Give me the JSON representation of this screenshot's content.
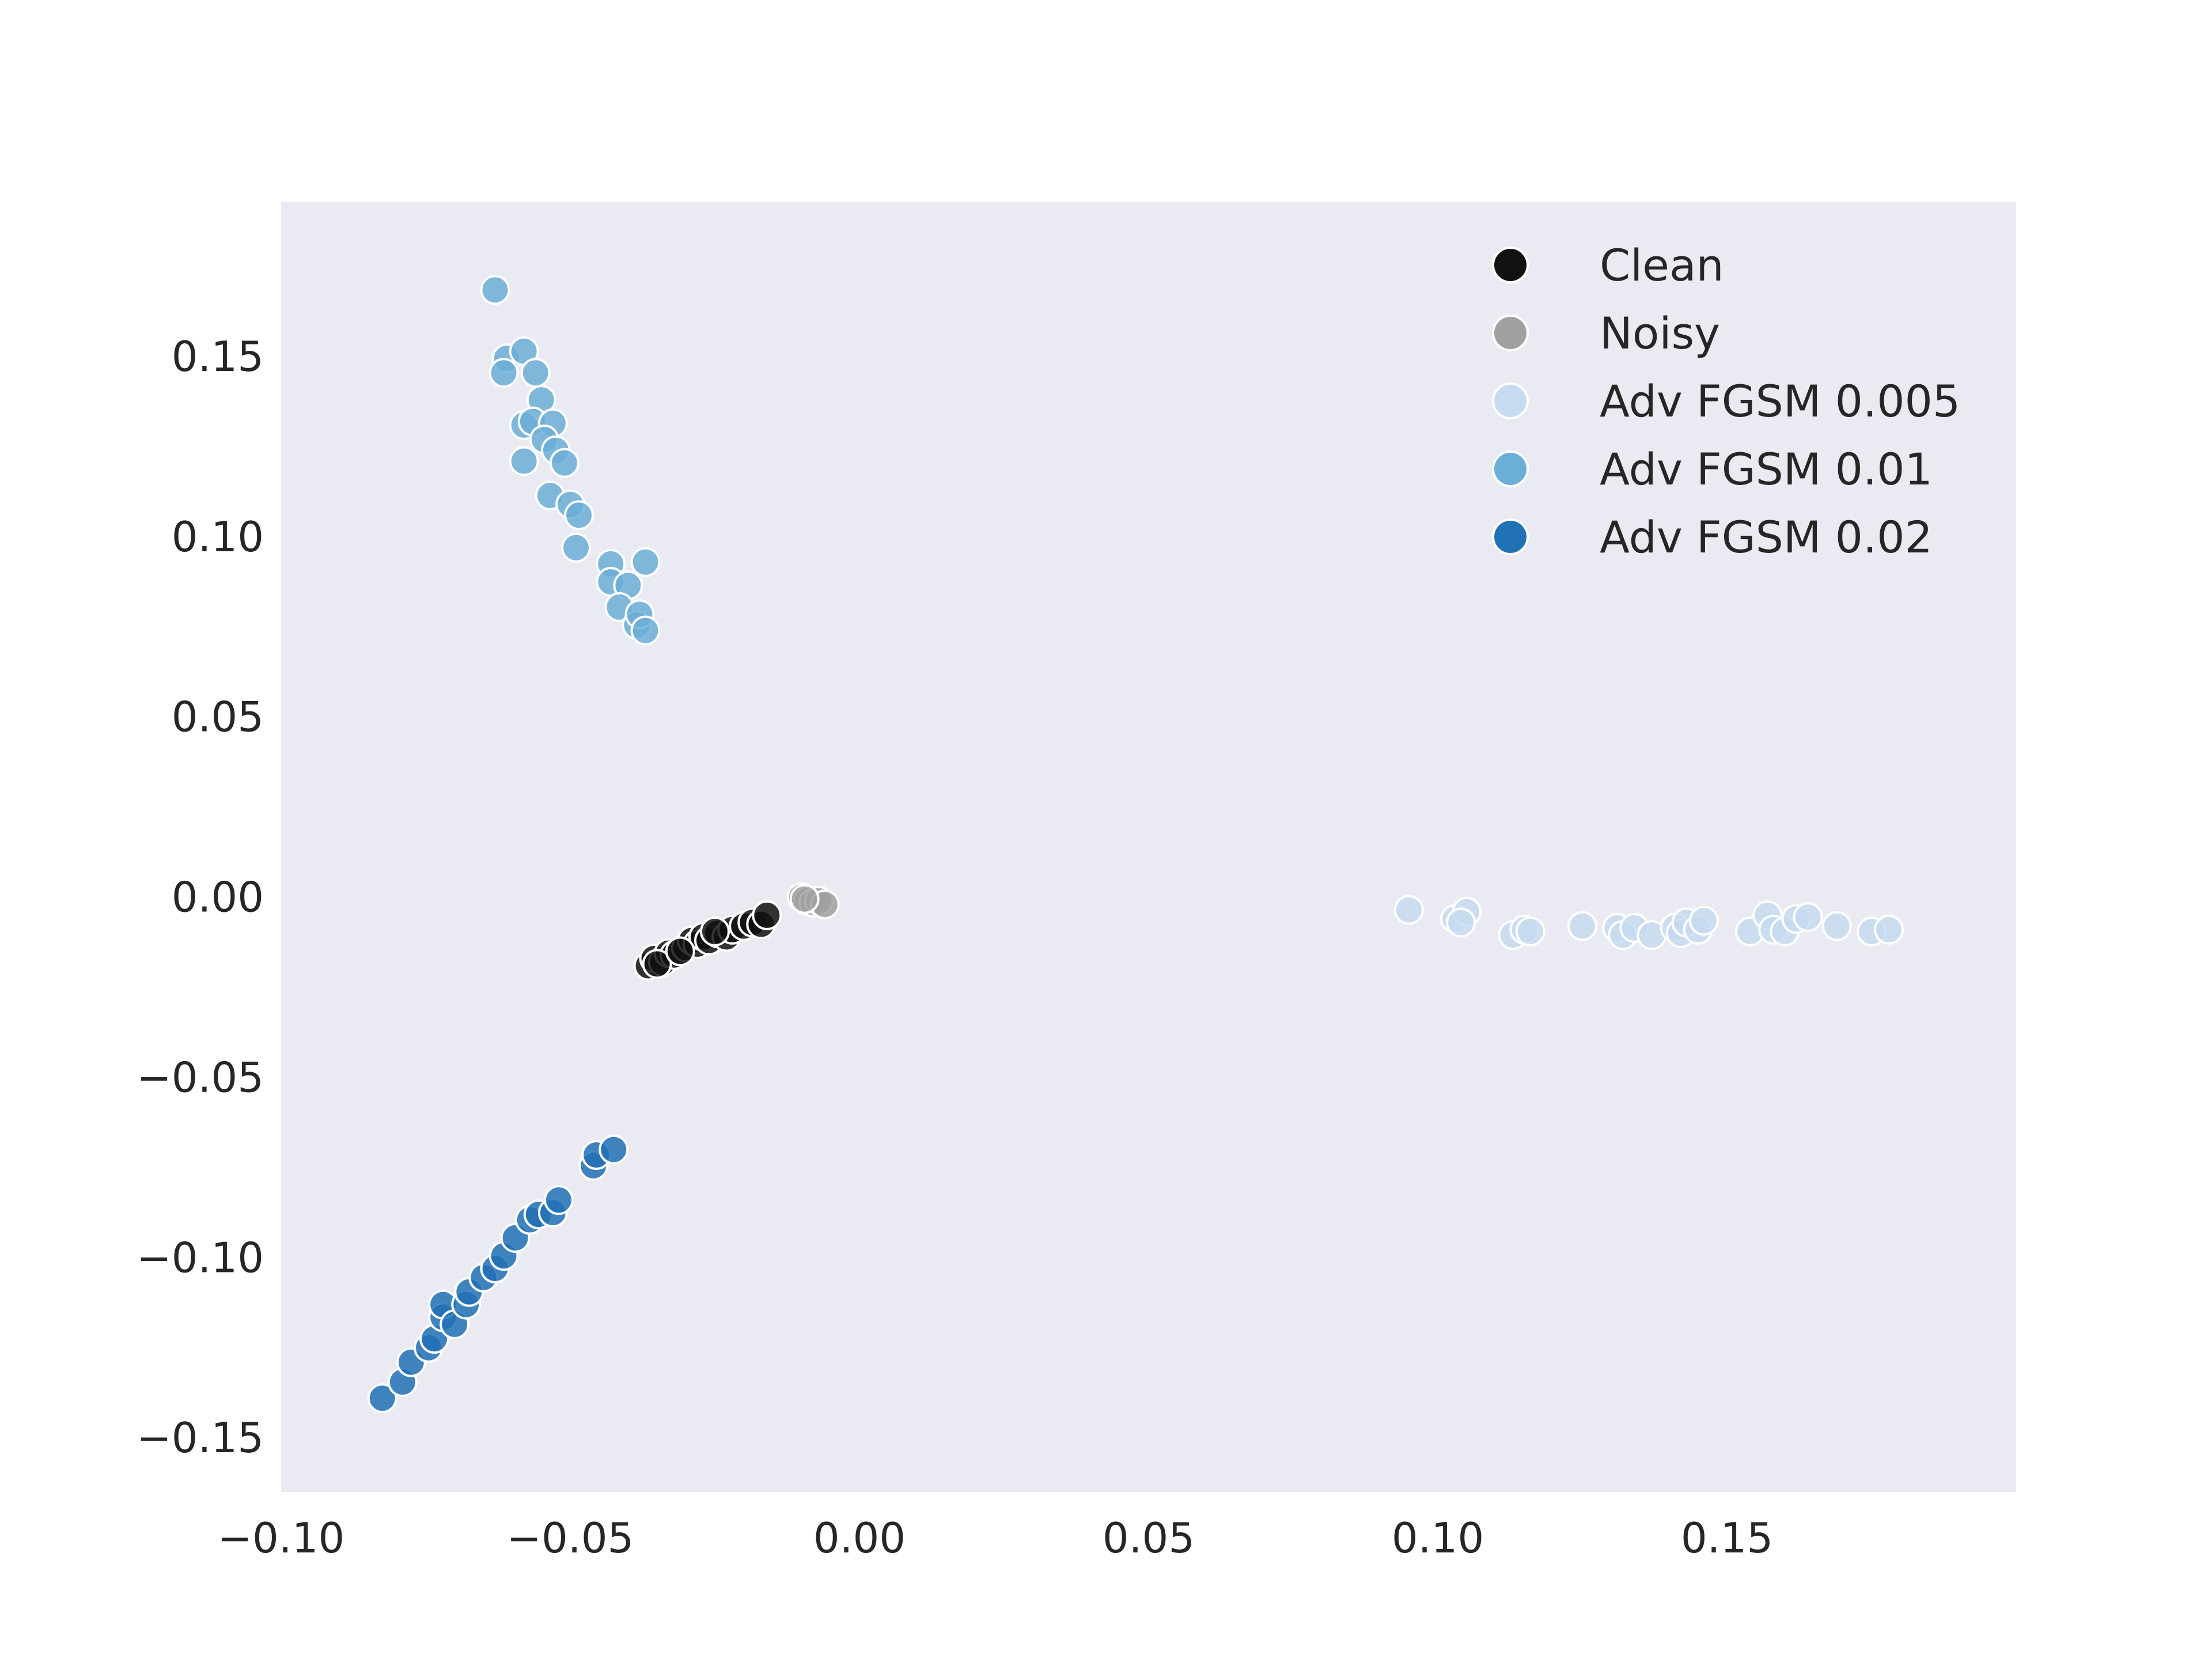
{
  "chart_data": {
    "type": "scatter",
    "title": "",
    "xlabel": "",
    "ylabel": "",
    "xlim": [
      -0.1,
      0.2
    ],
    "ylim": [
      -0.165,
      0.193
    ],
    "xticks": [
      -0.1,
      -0.05,
      0.0,
      0.05,
      0.1,
      0.15
    ],
    "xtick_labels": [
      "−0.10",
      "−0.05",
      "0.00",
      "0.05",
      "0.10",
      "0.15"
    ],
    "yticks": [
      -0.15,
      -0.1,
      -0.05,
      0.0,
      0.05,
      0.1,
      0.15
    ],
    "ytick_labels": [
      "−0.15",
      "−0.10",
      "−0.05",
      "0.00",
      "0.05",
      "0.10",
      "0.15"
    ],
    "grid": false,
    "background": "#eaeaf2",
    "legend": {
      "placement": "top-right"
    },
    "series": [
      {
        "name": "Clean",
        "color": "#111111",
        "points": [
          [
            -0.0365,
            -0.019
          ],
          [
            -0.0355,
            -0.017
          ],
          [
            -0.034,
            -0.018
          ],
          [
            -0.033,
            -0.0155
          ],
          [
            -0.032,
            -0.016
          ],
          [
            -0.03,
            -0.014
          ],
          [
            -0.029,
            -0.012
          ],
          [
            -0.028,
            -0.013
          ],
          [
            -0.027,
            -0.011
          ],
          [
            -0.026,
            -0.012
          ],
          [
            -0.0245,
            -0.01
          ],
          [
            -0.023,
            -0.011
          ],
          [
            -0.022,
            -0.009
          ],
          [
            -0.02,
            -0.008
          ],
          [
            -0.0185,
            -0.007
          ],
          [
            -0.017,
            -0.0075
          ],
          [
            -0.016,
            -0.005
          ],
          [
            -0.035,
            -0.0185
          ],
          [
            -0.031,
            -0.015
          ],
          [
            -0.025,
            -0.0095
          ]
        ]
      },
      {
        "name": "Noisy",
        "color": "#a0a0a0",
        "points": [
          [
            -0.01,
            0.0
          ],
          [
            -0.009,
            -0.001
          ],
          [
            -0.008,
            -0.0015
          ],
          [
            -0.007,
            -0.001
          ],
          [
            -0.006,
            -0.002
          ],
          [
            -0.0095,
            -0.0005
          ]
        ]
      },
      {
        "name": "Adv FGSM 0.005",
        "color": "#c6dbef",
        "points": [
          [
            0.095,
            -0.0035
          ],
          [
            0.103,
            -0.006
          ],
          [
            0.105,
            -0.004
          ],
          [
            0.104,
            -0.007
          ],
          [
            0.113,
            -0.0105
          ],
          [
            0.115,
            -0.009
          ],
          [
            0.116,
            -0.0095
          ],
          [
            0.125,
            -0.008
          ],
          [
            0.131,
            -0.0085
          ],
          [
            0.132,
            -0.0105
          ],
          [
            0.134,
            -0.0085
          ],
          [
            0.137,
            -0.0105
          ],
          [
            0.141,
            -0.0085
          ],
          [
            0.142,
            -0.01
          ],
          [
            0.143,
            -0.007
          ],
          [
            0.145,
            -0.009
          ],
          [
            0.146,
            -0.0065
          ],
          [
            0.154,
            -0.0095
          ],
          [
            0.157,
            -0.005
          ],
          [
            0.158,
            -0.009
          ],
          [
            0.16,
            -0.0095
          ],
          [
            0.162,
            -0.006
          ],
          [
            0.164,
            -0.0055
          ],
          [
            0.169,
            -0.008
          ],
          [
            0.175,
            -0.0095
          ],
          [
            0.178,
            -0.009
          ]
        ]
      },
      {
        "name": "Adv FGSM 0.01",
        "color": "#6baed6",
        "points": [
          [
            -0.063,
            0.1685
          ],
          [
            -0.061,
            0.1495
          ],
          [
            -0.0615,
            0.1455
          ],
          [
            -0.058,
            0.1515
          ],
          [
            -0.056,
            0.1455
          ],
          [
            -0.055,
            0.138
          ],
          [
            -0.058,
            0.131
          ],
          [
            -0.0565,
            0.132
          ],
          [
            -0.053,
            0.1315
          ],
          [
            -0.0545,
            0.127
          ],
          [
            -0.0525,
            0.124
          ],
          [
            -0.051,
            0.1205
          ],
          [
            -0.058,
            0.121
          ],
          [
            -0.0535,
            0.1115
          ],
          [
            -0.05,
            0.109
          ],
          [
            -0.0485,
            0.106
          ],
          [
            -0.049,
            0.097
          ],
          [
            -0.043,
            0.0925
          ],
          [
            -0.037,
            0.093
          ],
          [
            -0.043,
            0.0875
          ],
          [
            -0.04,
            0.0865
          ],
          [
            -0.0415,
            0.0805
          ],
          [
            -0.0385,
            0.0755
          ],
          [
            -0.038,
            0.0785
          ],
          [
            -0.037,
            0.074
          ]
        ]
      },
      {
        "name": "Adv FGSM 0.02",
        "color": "#2171b5",
        "points": [
          [
            -0.0825,
            -0.139
          ],
          [
            -0.079,
            -0.1345
          ],
          [
            -0.0775,
            -0.129
          ],
          [
            -0.0745,
            -0.125
          ],
          [
            -0.0735,
            -0.1225
          ],
          [
            -0.072,
            -0.1165
          ],
          [
            -0.072,
            -0.113
          ],
          [
            -0.07,
            -0.1185
          ],
          [
            -0.068,
            -0.113
          ],
          [
            -0.0675,
            -0.1095
          ],
          [
            -0.065,
            -0.1055
          ],
          [
            -0.063,
            -0.103
          ],
          [
            -0.0615,
            -0.0995
          ],
          [
            -0.0595,
            -0.0945
          ],
          [
            -0.057,
            -0.0895
          ],
          [
            -0.0555,
            -0.088
          ],
          [
            -0.053,
            -0.0875
          ],
          [
            -0.052,
            -0.084
          ],
          [
            -0.046,
            -0.0745
          ],
          [
            -0.0455,
            -0.0715
          ],
          [
            -0.0425,
            -0.07
          ]
        ]
      }
    ]
  }
}
